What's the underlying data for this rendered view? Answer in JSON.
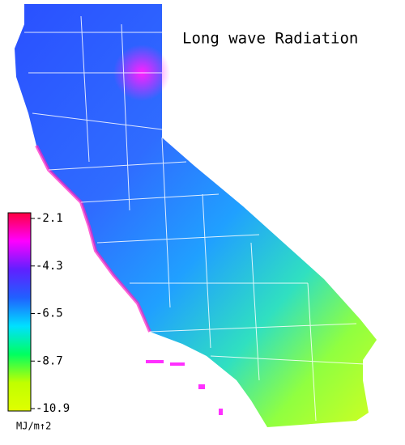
{
  "title": "Long wave Radiation",
  "colorbar": {
    "ticks": [
      -2.1,
      -4.3,
      -6.5,
      -8.7,
      -10.9
    ],
    "label": "MJ/m↑2",
    "colors": [
      "#ff0040",
      "#ff00ff",
      "#6020ff",
      "#2060ff",
      "#00e0ff",
      "#00ff60",
      "#c0ff00",
      "#e0ff00"
    ]
  }
}
